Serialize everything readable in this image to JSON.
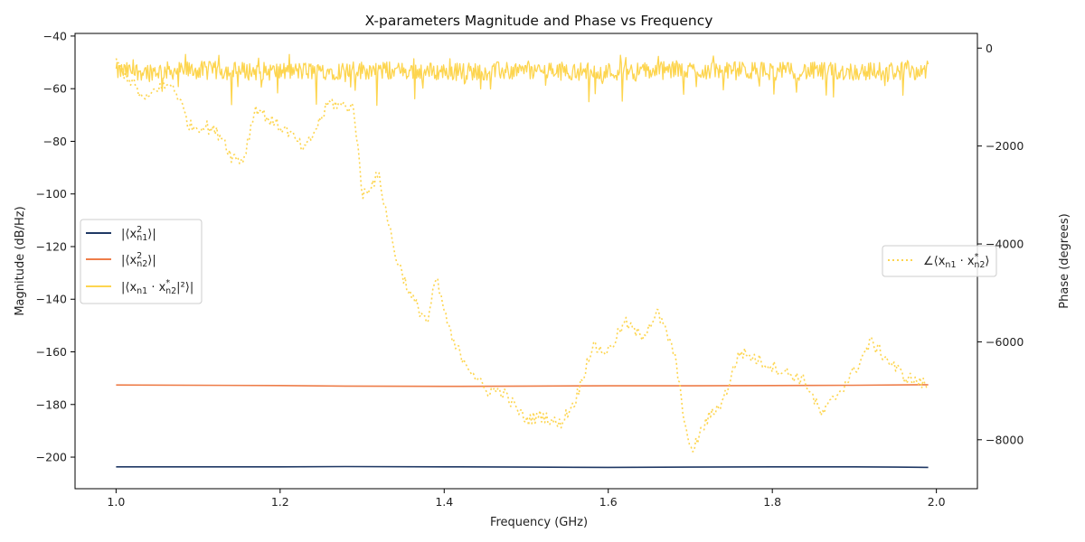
{
  "chart_data": {
    "type": "line",
    "title": "X-parameters Magnitude and Phase vs Frequency",
    "xlabel": "Frequency (GHz)",
    "ylabel_left": "Magnitude (dB/Hz)",
    "ylabel_right": "Phase (degrees)",
    "xlim": [
      0.95,
      2.05
    ],
    "ylim_left": [
      -212,
      -39
    ],
    "ylim_right": [
      -9000,
      300
    ],
    "x_ticks": [
      "1.0",
      "1.2",
      "1.4",
      "1.6",
      "1.8",
      "2.0"
    ],
    "y_left_ticks": [
      "-40",
      "-60",
      "-80",
      "-100",
      "-120",
      "-140",
      "-160",
      "-180",
      "-200"
    ],
    "y_right_ticks": [
      "0",
      "-2000",
      "-4000",
      "-6000",
      "-8000"
    ],
    "grid": false,
    "series": [
      {
        "name": "|⟨x²n1⟩|",
        "axis": "left",
        "color": "#1f3864",
        "style": "solid",
        "x": [
          1.0,
          1.2,
          1.28,
          1.4,
          1.5,
          1.6,
          1.7,
          1.8,
          1.9,
          1.95,
          1.99
        ],
        "values": [
          -203.7,
          -203.7,
          -203.6,
          -203.7,
          -203.8,
          -203.9,
          -203.8,
          -203.7,
          -203.7,
          -203.8,
          -203.9
        ]
      },
      {
        "name": "|⟨x²n2⟩|",
        "axis": "left",
        "color": "#ee7d49",
        "style": "solid",
        "x": [
          1.0,
          1.2,
          1.28,
          1.4,
          1.5,
          1.6,
          1.7,
          1.8,
          1.9,
          1.99
        ],
        "values": [
          -172.6,
          -172.8,
          -173.0,
          -173.1,
          -173.0,
          -172.9,
          -172.9,
          -172.8,
          -172.7,
          -172.5
        ]
      },
      {
        "name": "|⟨x_n1 · x*_n2|²⟩|",
        "axis": "left",
        "color": "#fdd54f",
        "style": "solid",
        "x": [
          1.0,
          1.1,
          1.2,
          1.3,
          1.4,
          1.5,
          1.6,
          1.7,
          1.8,
          1.9,
          1.99
        ],
        "values": [
          -53.5,
          -53.0,
          -53.5,
          -53.0,
          -53.5,
          -53.2,
          -53.5,
          -53.0,
          -53.3,
          -53.5,
          -53.0
        ],
        "noise_range": [
          -70,
          -47
        ]
      },
      {
        "name": "∠⟨x_n1 · x*_n2⟩",
        "axis": "right",
        "color": "#fdd54f",
        "style": "dotted",
        "x": [
          1.0,
          1.02,
          1.035,
          1.05,
          1.07,
          1.09,
          1.11,
          1.13,
          1.14,
          1.155,
          1.17,
          1.19,
          1.21,
          1.23,
          1.26,
          1.28,
          1.29,
          1.3,
          1.31,
          1.32,
          1.34,
          1.36,
          1.38,
          1.39,
          1.41,
          1.43,
          1.45,
          1.47,
          1.5,
          1.52,
          1.54,
          1.56,
          1.58,
          1.6,
          1.62,
          1.64,
          1.66,
          1.68,
          1.7,
          1.72,
          1.74,
          1.76,
          1.8,
          1.84,
          1.86,
          1.9,
          1.92,
          1.96,
          1.99
        ],
        "values": [
          -300,
          -700,
          -1100,
          -800,
          -750,
          -1600,
          -1600,
          -1800,
          -2200,
          -2300,
          -1200,
          -1500,
          -1700,
          -2100,
          -1100,
          -1200,
          -1200,
          -3000,
          -2800,
          -2600,
          -4200,
          -5100,
          -5600,
          -4700,
          -6000,
          -6500,
          -7000,
          -7000,
          -7600,
          -7500,
          -7700,
          -7200,
          -6100,
          -6200,
          -5600,
          -5900,
          -5400,
          -6200,
          -8300,
          -7600,
          -7200,
          -6200,
          -6500,
          -6800,
          -7500,
          -6600,
          -6000,
          -6700,
          -6900
        ]
      }
    ],
    "legend_left": {
      "entries": [
        {
          "base": "|⟨x",
          "sup": "2",
          "sub": "n1",
          "tail": "⟩|",
          "color": "#1f3864",
          "style": "solid"
        },
        {
          "base": "|⟨x",
          "sup": "2",
          "sub": "n2",
          "tail": "⟩|",
          "color": "#ee7d49",
          "style": "solid"
        },
        {
          "base": "|⟨x",
          "sub1": "n1",
          "mid": " · x",
          "sup": "*",
          "sub": "n2",
          "tail": "|²⟩|",
          "color": "#fdd54f",
          "style": "solid"
        }
      ],
      "position": "center-left"
    },
    "legend_right": {
      "entries": [
        {
          "base": "∠⟨x",
          "sub1": "n1",
          "mid": " · x",
          "sup": "*",
          "sub": "n2",
          "tail": "⟩",
          "color": "#fdd54f",
          "style": "dotted"
        }
      ],
      "position": "center-right"
    }
  }
}
